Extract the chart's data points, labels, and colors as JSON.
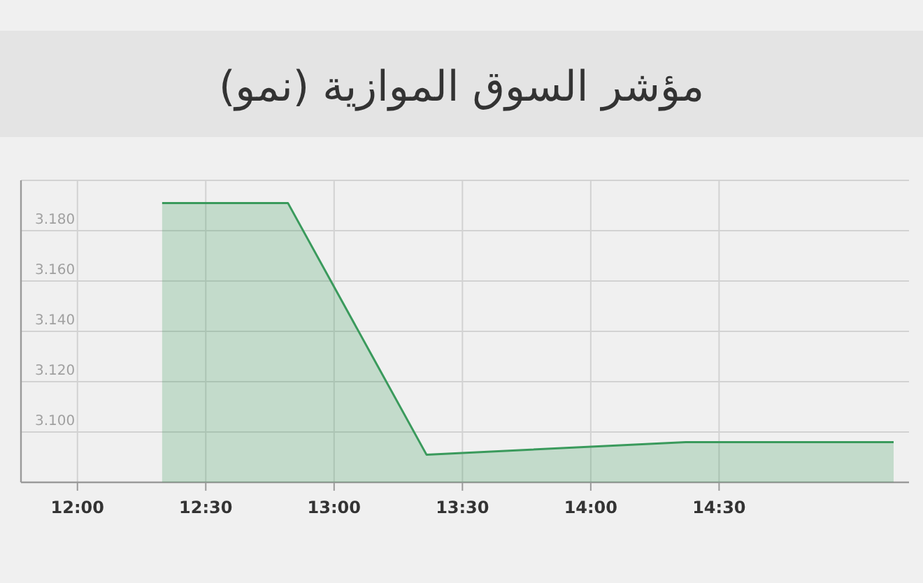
{
  "chart_data": {
    "type": "area",
    "title": "مؤشر السوق الموازية (نمو)",
    "x": [
      12.33,
      12.82,
      13.36,
      14.37,
      15.18
    ],
    "series": [
      {
        "color": "#3a9a5c",
        "values": [
          3.191,
          3.191,
          3.091,
          3.096,
          3.096
        ]
      }
    ],
    "xlim": [
      11.78,
      15.24
    ],
    "xticks": [
      {
        "value": 12,
        "label": "12:00"
      },
      {
        "value": 12.5,
        "label": "12:30"
      },
      {
        "value": 13,
        "label": "13:00"
      },
      {
        "value": 13.5,
        "label": "13:30"
      },
      {
        "value": 14,
        "label": "14:00"
      },
      {
        "value": 14.5,
        "label": "14:30"
      }
    ],
    "ylim": [
      3.08,
      3.2
    ],
    "yticks": [
      {
        "value": 3.1,
        "label": "3.100"
      },
      {
        "value": 3.12,
        "label": "3.120"
      },
      {
        "value": 3.14,
        "label": "3.140"
      },
      {
        "value": 3.16,
        "label": "3.160"
      },
      {
        "value": 3.18,
        "label": "3.180"
      },
      {
        "value": 3.2,
        "label": null
      }
    ],
    "grid": true
  }
}
